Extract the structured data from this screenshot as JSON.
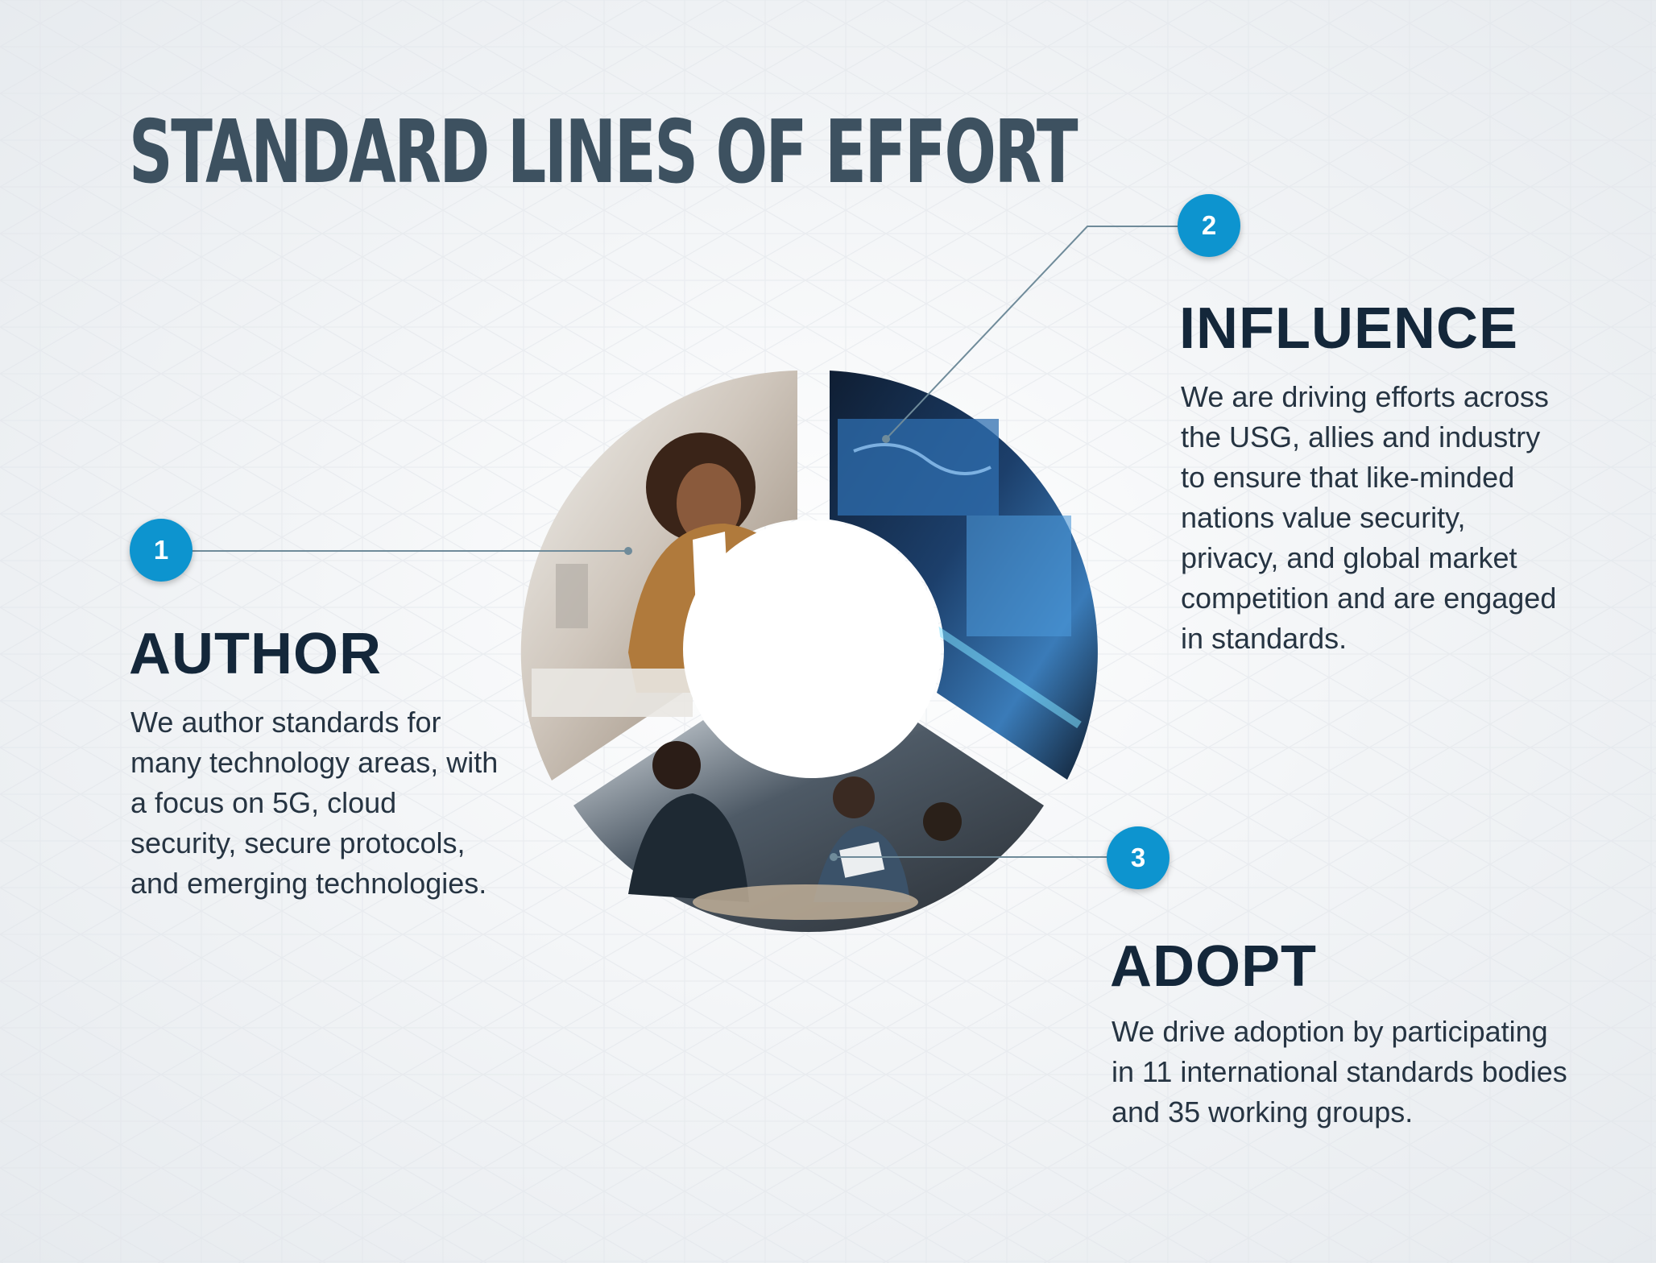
{
  "title": "STANDARD LINES OF EFFORT",
  "colors": {
    "title": "#3d5160",
    "heading": "#14273a",
    "badge": "#0d94cf",
    "connector": "#6f8b9a",
    "body_text": "#263442"
  },
  "items": [
    {
      "number": "1",
      "heading": "AUTHOR",
      "description": "We author standards for many technology areas, with a focus on 5G, cloud security, secure protocols, and emerging technologies.",
      "photo": "woman-at-desk-photo"
    },
    {
      "number": "2",
      "heading": "INFLUENCE",
      "description": "We are driving efforts across the USG, allies and industry to ensure that like-minded nations value security, privacy, and global market competition and are engaged in standards.",
      "photo": "operations-center-screens-photo"
    },
    {
      "number": "3",
      "heading": "ADOPT",
      "description": "We drive adoption by participating in 11 international standards bodies and 35 working groups.",
      "photo": "team-meeting-photo"
    }
  ]
}
